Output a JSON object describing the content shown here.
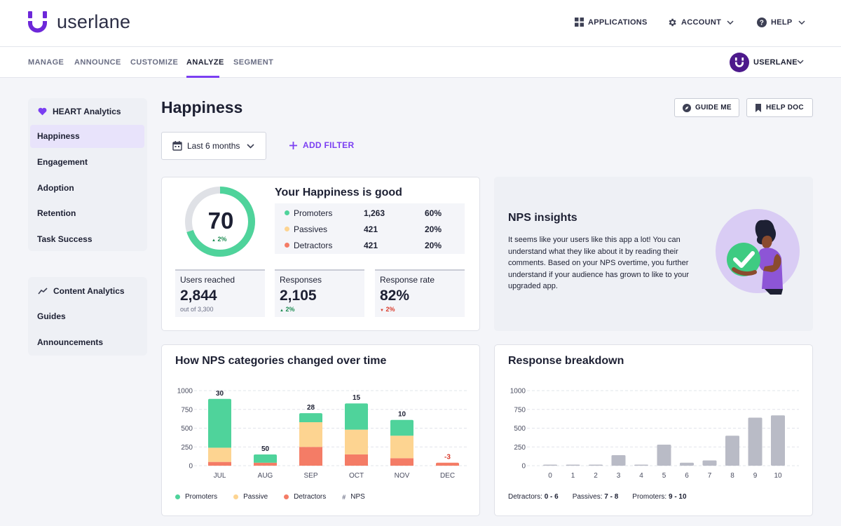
{
  "header": {
    "brand": "userlane",
    "applications_label": "APPLICATIONS",
    "account_label": "ACCOUNT",
    "help_label": "HELP"
  },
  "nav": {
    "tabs": [
      {
        "label": "MANAGE"
      },
      {
        "label": "ANNOUNCE"
      },
      {
        "label": "CUSTOMIZE"
      },
      {
        "label": "ANALYZE"
      },
      {
        "label": "SEGMENT"
      }
    ],
    "active_tab": "ANALYZE",
    "account_name": "USERLANE"
  },
  "sidebar": {
    "heart_section": {
      "title": "HEART Analytics",
      "items": [
        {
          "label": "Happiness"
        },
        {
          "label": "Engagement"
        },
        {
          "label": "Adoption"
        },
        {
          "label": "Retention"
        },
        {
          "label": "Task Success"
        }
      ]
    },
    "content_section": {
      "title": "Content Analytics",
      "items": [
        {
          "label": "Guides"
        },
        {
          "label": "Announcements"
        }
      ]
    }
  },
  "page": {
    "title": "Happiness",
    "guide_me_label": "GUIDE ME",
    "help_doc_label": "HELP DOC",
    "date_range": "Last 6 months",
    "add_filter_label": "ADD FILTER"
  },
  "happiness": {
    "headline": "Your Happiness is good",
    "score": "70",
    "score_delta": "2%",
    "score_fraction": 0.7,
    "categories": [
      {
        "label": "Promoters",
        "count": "1,263",
        "pct": "60%",
        "color": "#4fd39b"
      },
      {
        "label": "Passives",
        "count": "421",
        "pct": "20%",
        "color": "#fdd491"
      },
      {
        "label": "Detractors",
        "count": "421",
        "pct": "20%",
        "color": "#f47c66"
      }
    ],
    "metrics": {
      "users_reached": {
        "label": "Users reached",
        "value": "2,844",
        "sub": "out of 3,300"
      },
      "responses": {
        "label": "Responses",
        "value": "2,105",
        "delta": "2%"
      },
      "response_rate": {
        "label": "Response rate",
        "value": "82%",
        "delta": "2%"
      }
    }
  },
  "insights": {
    "title": "NPS insights",
    "text": "It seems like your users like this app a lot! You can understand what they like about it by reading their comments. Based on your NPS overtime, you further understand if your audience has grown to like to your upgraded app."
  },
  "colors": {
    "accent": "#7b3ff2",
    "promoters": "#4fd39b",
    "passives": "#fdd491",
    "detractors": "#f47c66",
    "positive": "#1d8c52",
    "negative": "#d93a2b",
    "breakdown_bar": "#b9bbc6"
  },
  "chart_data": [
    {
      "type": "bar",
      "stacked": true,
      "title": "How NPS categories changed over time",
      "categories": [
        "JUL",
        "AUG",
        "SEP",
        "OCT",
        "NOV",
        "DEC"
      ],
      "series": [
        {
          "name": "Detractors",
          "values": [
            50,
            40,
            250,
            150,
            100,
            40
          ]
        },
        {
          "name": "Passive",
          "values": [
            190,
            0,
            330,
            330,
            300,
            0
          ]
        },
        {
          "name": "Promoters",
          "values": [
            650,
            110,
            120,
            350,
            210,
            0
          ]
        }
      ],
      "nps": [
        "30",
        "50",
        "28",
        "15",
        "10",
        "-3"
      ],
      "nps_legend": "NPS",
      "legend_labels": [
        "Promoters",
        "Passive",
        "Detractors"
      ],
      "yticks": [
        "1000",
        "750",
        "500",
        "250",
        "0"
      ],
      "ylim": [
        0,
        1000
      ],
      "xlabel": "",
      "ylabel": ""
    },
    {
      "type": "bar",
      "title": "Response breakdown",
      "categories": [
        "0",
        "1",
        "2",
        "3",
        "4",
        "5",
        "6",
        "7",
        "8",
        "9",
        "10"
      ],
      "values": [
        5,
        5,
        5,
        140,
        5,
        280,
        40,
        70,
        400,
        640,
        670
      ],
      "yticks": [
        "1000",
        "750",
        "500",
        "250",
        "0"
      ],
      "ylim": [
        0,
        1000
      ],
      "legend": {
        "detractors_label": "Detractors:",
        "detractors_range": "0 - 6",
        "passives_label": "Passives:",
        "passives_range": "7 - 8",
        "promoters_label": "Promoters:",
        "promoters_range": "9 - 10"
      }
    }
  ]
}
